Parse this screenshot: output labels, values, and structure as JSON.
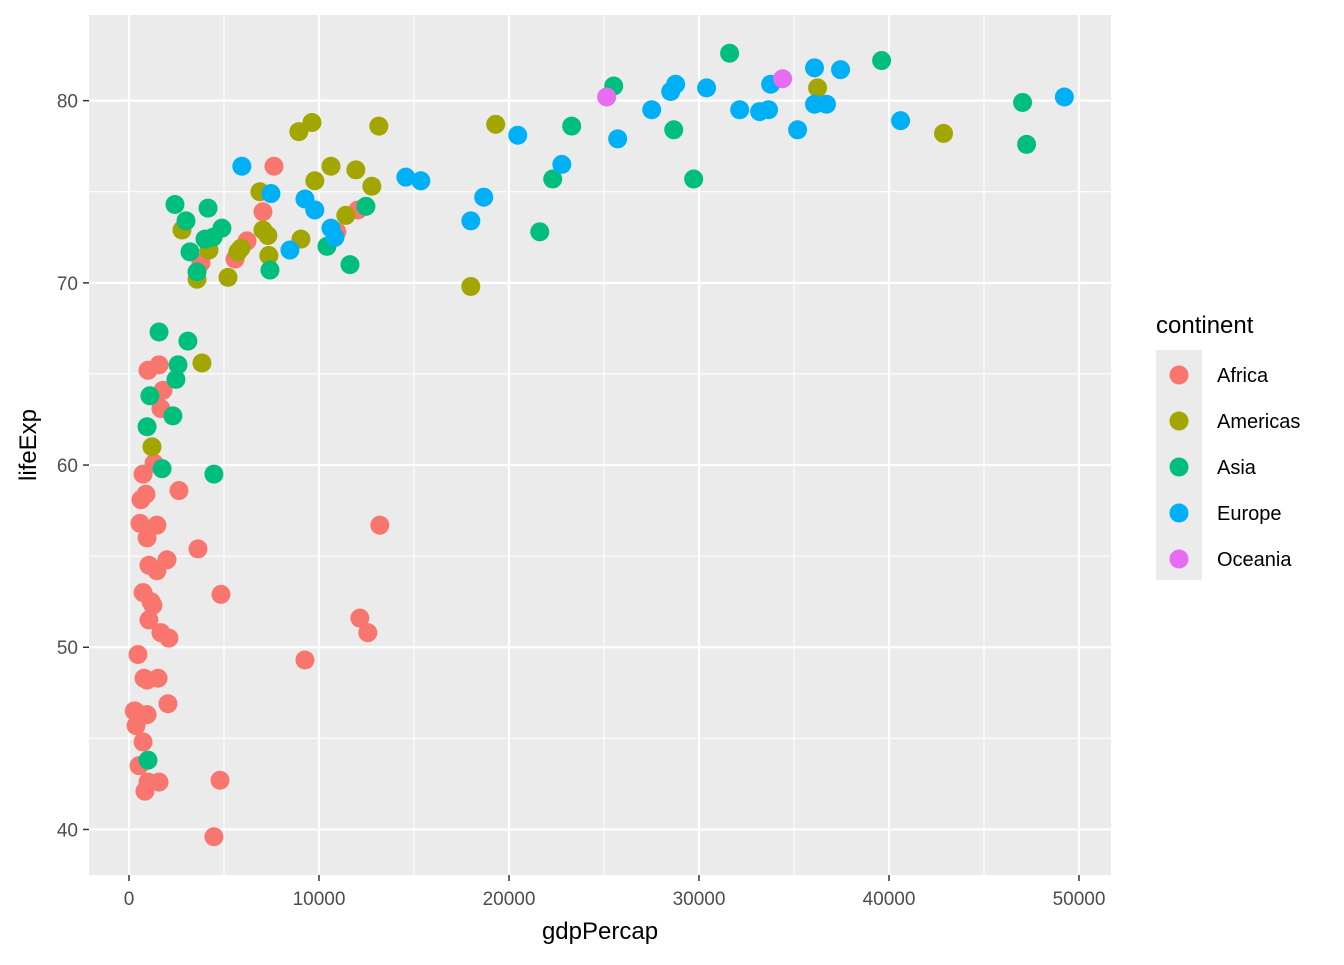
{
  "chart_data": {
    "type": "scatter",
    "title": "",
    "xlabel": "gdpPercap",
    "ylabel": "lifeExp",
    "xlim": [
      -2105,
      51684
    ],
    "ylim": [
      37.5,
      84.7
    ],
    "xticks": [
      0,
      10000,
      20000,
      30000,
      40000,
      50000
    ],
    "yticks": [
      40,
      50,
      60,
      70,
      80
    ],
    "grid": true,
    "legend": {
      "title": "continent",
      "placement": "right"
    },
    "series": [
      {
        "name": "Africa",
        "color": "#F8766D",
        "points": [
          [
            7630,
            76.4
          ],
          [
            7050,
            73.9
          ],
          [
            6210,
            72.3
          ],
          [
            5580,
            71.3
          ],
          [
            3790,
            71.1
          ],
          [
            10940,
            72.8
          ],
          [
            12050,
            74.0
          ],
          [
            1580,
            65.5
          ],
          [
            1000,
            65.2
          ],
          [
            1790,
            64.1
          ],
          [
            1680,
            63.1
          ],
          [
            1320,
            60.1
          ],
          [
            740,
            59.5
          ],
          [
            890,
            58.4
          ],
          [
            630,
            58.1
          ],
          [
            2630,
            58.6
          ],
          [
            1470,
            56.7
          ],
          [
            580,
            56.8
          ],
          [
            950,
            56.0
          ],
          [
            1050,
            54.5
          ],
          [
            1470,
            54.2
          ],
          [
            2000,
            54.8
          ],
          [
            3630,
            55.4
          ],
          [
            13200,
            56.7
          ],
          [
            740,
            53.0
          ],
          [
            1160,
            52.5
          ],
          [
            1260,
            52.3
          ],
          [
            1050,
            51.5
          ],
          [
            1680,
            50.8
          ],
          [
            2100,
            50.5
          ],
          [
            4840,
            52.9
          ],
          [
            12150,
            51.6
          ],
          [
            12570,
            50.8
          ],
          [
            9260,
            49.3
          ],
          [
            470,
            49.6
          ],
          [
            790,
            48.3
          ],
          [
            1530,
            48.3
          ],
          [
            950,
            48.2
          ],
          [
            2050,
            46.9
          ],
          [
            320,
            46.5
          ],
          [
            280,
            46.5
          ],
          [
            580,
            46.3
          ],
          [
            950,
            46.3
          ],
          [
            370,
            45.7
          ],
          [
            740,
            44.8
          ],
          [
            530,
            43.5
          ],
          [
            1000,
            42.6
          ],
          [
            1580,
            42.6
          ],
          [
            840,
            42.1
          ],
          [
            4790,
            42.7
          ],
          [
            4470,
            39.6
          ]
        ]
      },
      {
        "name": "Americas",
        "color": "#A3A500",
        "points": [
          [
            8940,
            78.3
          ],
          [
            9630,
            78.8
          ],
          [
            13150,
            78.6
          ],
          [
            10630,
            76.4
          ],
          [
            9780,
            75.6
          ],
          [
            11940,
            76.2
          ],
          [
            12780,
            75.3
          ],
          [
            11410,
            73.7
          ],
          [
            9050,
            72.4
          ],
          [
            6890,
            75.0
          ],
          [
            7050,
            72.9
          ],
          [
            7310,
            72.6
          ],
          [
            7360,
            71.5
          ],
          [
            5890,
            71.9
          ],
          [
            5730,
            71.7
          ],
          [
            4210,
            71.8
          ],
          [
            2790,
            72.9
          ],
          [
            3580,
            70.2
          ],
          [
            5210,
            70.3
          ],
          [
            3840,
            65.6
          ],
          [
            1210,
            61.0
          ],
          [
            17990,
            69.8
          ],
          [
            19300,
            78.7
          ],
          [
            36240,
            80.7
          ],
          [
            42870,
            78.2
          ]
        ]
      },
      {
        "name": "Asia",
        "color": "#00BF7D",
        "points": [
          [
            2420,
            74.3
          ],
          [
            4160,
            74.1
          ],
          [
            3000,
            73.4
          ],
          [
            3210,
            71.7
          ],
          [
            4890,
            73.0
          ],
          [
            4420,
            72.5
          ],
          [
            4000,
            72.4
          ],
          [
            3580,
            70.6
          ],
          [
            7420,
            70.7
          ],
          [
            10420,
            72.0
          ],
          [
            12470,
            74.2
          ],
          [
            11630,
            71.0
          ],
          [
            1580,
            67.3
          ],
          [
            3100,
            66.8
          ],
          [
            2580,
            65.5
          ],
          [
            2470,
            64.7
          ],
          [
            2310,
            62.7
          ],
          [
            1100,
            63.8
          ],
          [
            950,
            62.1
          ],
          [
            1740,
            59.8
          ],
          [
            4470,
            59.5
          ],
          [
            1000,
            43.8
          ],
          [
            22300,
            75.7
          ],
          [
            21620,
            72.8
          ],
          [
            23300,
            78.6
          ],
          [
            25510,
            80.8
          ],
          [
            28670,
            78.4
          ],
          [
            29720,
            75.7
          ],
          [
            31610,
            82.6
          ],
          [
            39610,
            82.2
          ],
          [
            47030,
            79.9
          ],
          [
            47240,
            77.6
          ]
        ]
      },
      {
        "name": "Europe",
        "color": "#00B0F6",
        "points": [
          [
            5940,
            76.4
          ],
          [
            7470,
            74.9
          ],
          [
            9260,
            74.6
          ],
          [
            9780,
            74.0
          ],
          [
            8470,
            71.8
          ],
          [
            10630,
            73.0
          ],
          [
            10840,
            72.5
          ],
          [
            14570,
            75.8
          ],
          [
            15360,
            75.6
          ],
          [
            17990,
            73.4
          ],
          [
            18670,
            74.7
          ],
          [
            20460,
            78.1
          ],
          [
            22780,
            76.5
          ],
          [
            25720,
            77.9
          ],
          [
            27510,
            79.5
          ],
          [
            28510,
            80.5
          ],
          [
            28770,
            80.9
          ],
          [
            30400,
            80.7
          ],
          [
            32140,
            79.5
          ],
          [
            33190,
            79.4
          ],
          [
            33660,
            79.5
          ],
          [
            35190,
            78.4
          ],
          [
            33770,
            80.9
          ],
          [
            36080,
            81.8
          ],
          [
            36080,
            79.8
          ],
          [
            36710,
            79.8
          ],
          [
            37450,
            81.7
          ],
          [
            40610,
            78.9
          ],
          [
            49230,
            80.2
          ]
        ]
      },
      {
        "name": "Oceania",
        "color": "#E76BF3",
        "points": [
          [
            25140,
            80.2
          ],
          [
            34400,
            81.2
          ]
        ]
      }
    ]
  }
}
